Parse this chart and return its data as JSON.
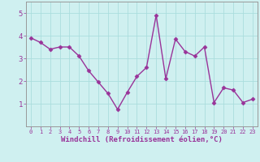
{
  "x": [
    0,
    1,
    2,
    3,
    4,
    5,
    6,
    7,
    8,
    9,
    10,
    11,
    12,
    13,
    14,
    15,
    16,
    17,
    18,
    19,
    20,
    21,
    22,
    23
  ],
  "y": [
    3.9,
    3.7,
    3.4,
    3.5,
    3.5,
    3.1,
    2.45,
    1.95,
    1.45,
    0.75,
    1.5,
    2.2,
    2.6,
    4.9,
    2.1,
    3.85,
    3.3,
    3.1,
    3.5,
    1.05,
    1.7,
    1.6,
    1.05,
    1.2
  ],
  "line_color": "#993399",
  "marker": "D",
  "marker_size": 2.5,
  "background_color": "#cff0f0",
  "grid_color": "#aadddd",
  "xlabel": "Windchill (Refroidissement éolien,°C)",
  "xlabel_color": "#993399",
  "tick_color": "#993399",
  "spine_color": "#999999",
  "ylim": [
    0,
    5.5
  ],
  "xlim": [
    -0.5,
    23.5
  ],
  "yticks": [
    1,
    2,
    3,
    4,
    5
  ],
  "xticks": [
    0,
    1,
    2,
    3,
    4,
    5,
    6,
    7,
    8,
    9,
    10,
    11,
    12,
    13,
    14,
    15,
    16,
    17,
    18,
    19,
    20,
    21,
    22,
    23
  ],
  "xlabel_fontsize": 6.5,
  "xtick_fontsize": 5.0,
  "ytick_fontsize": 6.5,
  "linewidth": 1.0
}
